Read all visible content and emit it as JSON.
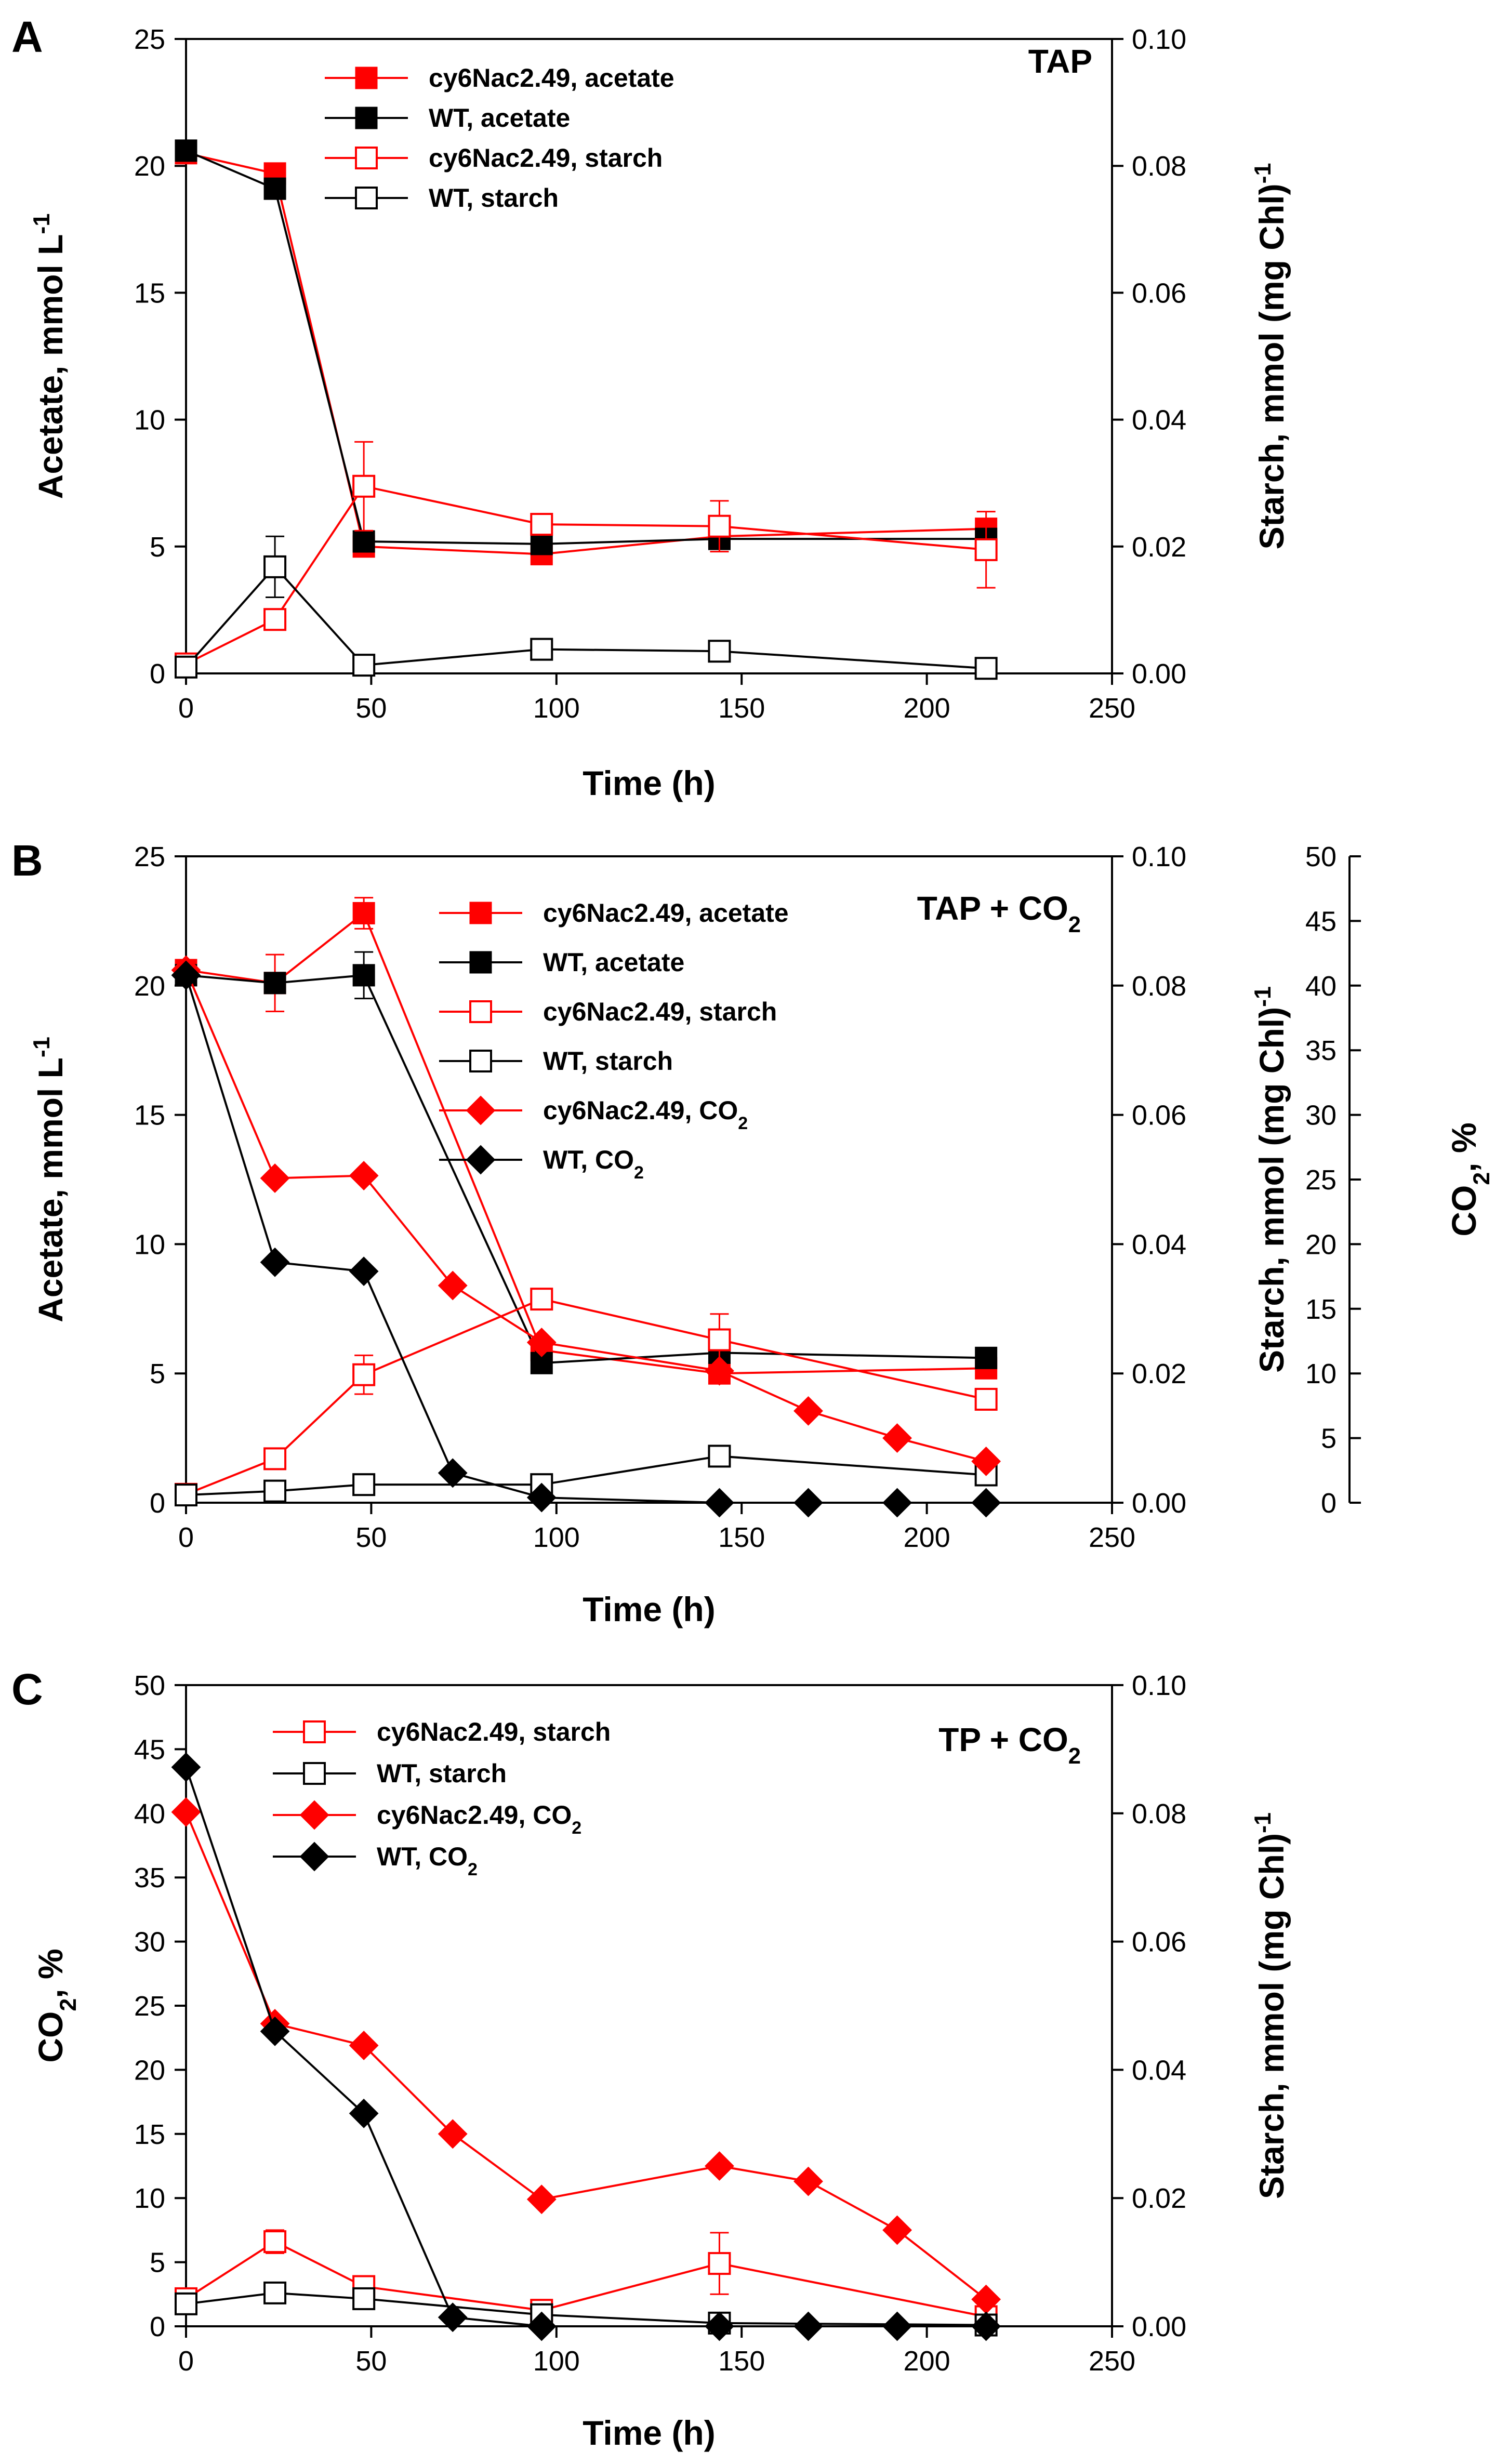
{
  "figure": {
    "colors": {
      "red": "#FF0000",
      "black": "#000000"
    },
    "x_axis_title": "Time (h)",
    "x_ticks": [
      "0",
      "50",
      "100",
      "150",
      "200",
      "250"
    ],
    "xlim": [
      0,
      250
    ]
  },
  "chart_data": [
    {
      "type": "line",
      "panel": "A",
      "condition": "TAP",
      "xlabel": "Time (h)",
      "ylabel_left": "Acetate, mmol L",
      "ylabel_left_sup": "-1",
      "ylabel_right": "Starch, mmol (mg Chl)",
      "ylabel_right_sup": "-1",
      "left_ticks": [
        "0",
        "5",
        "10",
        "15",
        "20",
        "25"
      ],
      "right_ticks": [
        "0.00",
        "0.02",
        "0.04",
        "0.06",
        "0.08",
        "0.10"
      ],
      "ylim_left": [
        0,
        25
      ],
      "ylim_right": [
        0,
        0.1
      ],
      "series": [
        {
          "name": "cy6Nac2.49, acetate",
          "axis": "left",
          "color": "#FF0000",
          "marker": "square-filled",
          "x": [
            0,
            24,
            48,
            96,
            144,
            216
          ],
          "values": [
            20.5,
            19.7,
            5.0,
            4.7,
            5.4,
            5.7
          ],
          "err": [
            0.3,
            0.3,
            0.4,
            0.3,
            0.4,
            0.4
          ]
        },
        {
          "name": "WT, acetate",
          "axis": "left",
          "color": "#000000",
          "marker": "square-filled",
          "x": [
            0,
            24,
            48,
            96,
            144,
            216
          ],
          "values": [
            20.6,
            19.1,
            5.2,
            5.1,
            5.3,
            5.3
          ],
          "err": [
            0.2,
            0.3,
            0.3,
            0.3,
            0.3,
            0.3
          ]
        },
        {
          "name": "cy6Nac2.49, starch",
          "axis": "right",
          "color": "#FF0000",
          "marker": "square-open",
          "x": [
            0,
            24,
            48,
            96,
            144,
            216
          ],
          "values": [
            0.0015,
            0.0085,
            0.0295,
            0.0235,
            0.0232,
            0.0195
          ],
          "err": [
            0.0005,
            0.001,
            0.007,
            0.001,
            0.004,
            0.006
          ]
        },
        {
          "name": "WT, starch",
          "axis": "right",
          "color": "#000000",
          "marker": "square-open",
          "x": [
            0,
            24,
            48,
            96,
            144,
            216
          ],
          "values": [
            0.001,
            0.0168,
            0.0013,
            0.0038,
            0.0035,
            0.0008
          ],
          "err": [
            0.0005,
            0.0048,
            0.0005,
            0.0005,
            0.0005,
            0.0005
          ]
        }
      ]
    },
    {
      "type": "line",
      "panel": "B",
      "condition": "TAP + CO",
      "condition_sub": "2",
      "xlabel": "Time (h)",
      "ylabel_left": "Acetate, mmol L",
      "ylabel_left_sup": "-1",
      "ylabel_right": "Starch, mmol (mg Chl)",
      "ylabel_right_sup": "-1",
      "ylabel_right2": "CO",
      "ylabel_right2_sub": "2",
      "ylabel_right2_tail": ", %",
      "left_ticks": [
        "0",
        "5",
        "10",
        "15",
        "20",
        "25"
      ],
      "right_ticks": [
        "0.00",
        "0.02",
        "0.04",
        "0.06",
        "0.08",
        "0.10"
      ],
      "right2_ticks": [
        "0",
        "5",
        "10",
        "15",
        "20",
        "25",
        "30",
        "35",
        "40",
        "45",
        "50"
      ],
      "ylim_left": [
        0,
        25
      ],
      "ylim_right": [
        0,
        0.1
      ],
      "ylim_right2": [
        0,
        50
      ],
      "series": [
        {
          "name": "cy6Nac2.49, acetate",
          "axis": "left",
          "color": "#FF0000",
          "marker": "square-filled",
          "x": [
            0,
            24,
            48,
            96,
            144,
            216
          ],
          "values": [
            20.6,
            20.1,
            22.8,
            5.9,
            5.0,
            5.2
          ],
          "err": [
            0.2,
            1.1,
            0.6,
            0.4,
            0.3,
            0.3
          ]
        },
        {
          "name": "WT, acetate",
          "axis": "left",
          "color": "#000000",
          "marker": "square-filled",
          "x": [
            0,
            24,
            48,
            96,
            144,
            216
          ],
          "values": [
            20.4,
            20.1,
            20.4,
            5.4,
            5.8,
            5.6
          ],
          "err": [
            0.2,
            0.3,
            0.9,
            0.3,
            0.3,
            0.3
          ]
        },
        {
          "name": "cy6Nac2.49, starch",
          "axis": "right",
          "color": "#FF0000",
          "marker": "square-open",
          "x": [
            0,
            24,
            48,
            96,
            144,
            216
          ],
          "values": [
            0.0013,
            0.0068,
            0.0198,
            0.0315,
            0.0252,
            0.016
          ],
          "err": [
            0.0005,
            0.001,
            0.003,
            0.001,
            0.004,
            0.0015
          ]
        },
        {
          "name": "WT, starch",
          "axis": "right",
          "color": "#000000",
          "marker": "square-open",
          "x": [
            0,
            24,
            48,
            96,
            144,
            216
          ],
          "values": [
            0.0012,
            0.0018,
            0.0028,
            0.0028,
            0.0072,
            0.0043
          ],
          "err": [
            0.0005,
            0.0005,
            0.0005,
            0.0005,
            0.0005,
            0.0005
          ]
        },
        {
          "name": "cy6Nac2.49, CO",
          "name_sub": "2",
          "axis": "right2",
          "color": "#FF0000",
          "marker": "diamond",
          "x": [
            0,
            24,
            48,
            72,
            96,
            144,
            168,
            192,
            216
          ],
          "values": [
            41.2,
            25.1,
            25.3,
            16.8,
            12.4,
            10.2,
            7.1,
            5.0,
            3.2
          ]
        },
        {
          "name": "WT, CO",
          "name_sub": "2",
          "axis": "right2",
          "color": "#000000",
          "marker": "diamond",
          "x": [
            0,
            24,
            48,
            72,
            96,
            144,
            168,
            192,
            216
          ],
          "values": [
            40.8,
            18.6,
            17.9,
            2.3,
            0.4,
            0.0,
            0.0,
            0.0,
            0.0
          ]
        }
      ]
    },
    {
      "type": "line",
      "panel": "C",
      "condition": "TP + CO",
      "condition_sub": "2",
      "xlabel": "Time (h)",
      "ylabel_left": "CO",
      "ylabel_left_sub": "2",
      "ylabel_left_tail": ", %",
      "ylabel_right": "Starch, mmol (mg Chl)",
      "ylabel_right_sup": "-1",
      "left_ticks": [
        "0",
        "5",
        "10",
        "15",
        "20",
        "25",
        "30",
        "35",
        "40",
        "45",
        "50"
      ],
      "right_ticks": [
        "0.00",
        "0.02",
        "0.04",
        "0.06",
        "0.08",
        "0.10"
      ],
      "ylim_left": [
        0,
        50
      ],
      "ylim_right": [
        0,
        0.1
      ],
      "series": [
        {
          "name": "cy6Nac2.49, starch",
          "axis": "right",
          "color": "#FF0000",
          "marker": "square-open",
          "x": [
            0,
            24,
            48,
            96,
            144,
            216
          ],
          "values": [
            0.0043,
            0.0132,
            0.0062,
            0.0025,
            0.0098,
            0.0015
          ],
          "err": [
            0.0005,
            0.0018,
            0.0005,
            0.0005,
            0.0048,
            0.0005
          ]
        },
        {
          "name": "WT, starch",
          "axis": "right",
          "color": "#000000",
          "marker": "square-open",
          "x": [
            0,
            24,
            48,
            96,
            144,
            216
          ],
          "values": [
            0.0035,
            0.0052,
            0.0043,
            0.0018,
            0.0005,
            0.0002
          ],
          "err": [
            0.0005,
            0.0005,
            0.0005,
            0.0005,
            0.0005,
            0.0005
          ]
        },
        {
          "name": "cy6Nac2.49, CO",
          "name_sub": "2",
          "axis": "left",
          "color": "#FF0000",
          "marker": "diamond",
          "x": [
            0,
            24,
            48,
            72,
            96,
            144,
            168,
            192,
            216
          ],
          "values": [
            40.1,
            23.6,
            21.9,
            15.0,
            9.9,
            12.5,
            11.3,
            7.5,
            2.1
          ]
        },
        {
          "name": "WT, CO",
          "name_sub": "2",
          "axis": "left",
          "color": "#000000",
          "marker": "diamond",
          "x": [
            0,
            24,
            48,
            72,
            96,
            144,
            168,
            192,
            216
          ],
          "values": [
            43.6,
            23.0,
            16.6,
            0.7,
            0.0,
            0.0,
            0.0,
            0.0,
            0.0
          ]
        }
      ]
    }
  ]
}
